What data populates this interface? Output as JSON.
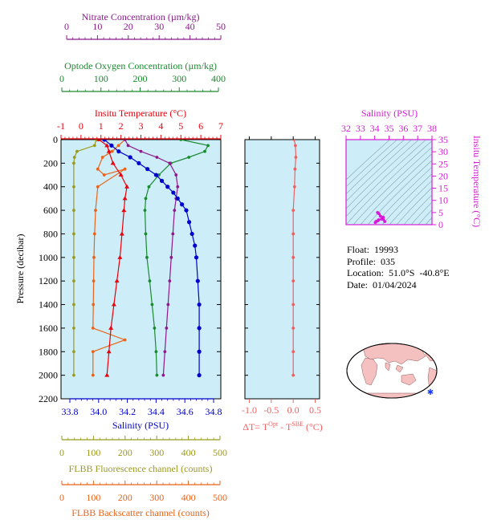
{
  "axes": {
    "nitrate": {
      "label": "Nitrate Concentration (µm/kg)",
      "ticks": [
        "0",
        "10",
        "20",
        "30",
        "40",
        "50"
      ],
      "range": [
        0,
        50
      ],
      "color": "#8b1a8b"
    },
    "oxygen": {
      "label": "Optode Oxygen Concentration (µm/kg)",
      "ticks": [
        "0",
        "100",
        "200",
        "300",
        "400"
      ],
      "range": [
        0,
        400
      ],
      "color": "#1a8a2e"
    },
    "temperature": {
      "label": "Insitu Temperature (°C)",
      "ticks": [
        "-1",
        "0",
        "1",
        "2",
        "3",
        "4",
        "5",
        "6",
        "7"
      ],
      "range": [
        -1,
        7
      ],
      "color": "#e8000b"
    },
    "salinity": {
      "label": "Salinity (PSU)",
      "ticks": [
        "33.8",
        "34.0",
        "34.2",
        "34.4",
        "34.6",
        "34.8"
      ],
      "range": [
        33.8,
        34.8
      ],
      "color": "#0000cc"
    },
    "pressure": {
      "label": "Pressure (decibar)",
      "ticks": [
        "0",
        "200",
        "400",
        "600",
        "800",
        "1000",
        "1200",
        "1400",
        "1600",
        "1800",
        "2000",
        "2200"
      ],
      "range": [
        0,
        2200
      ]
    },
    "fluorescence": {
      "label": "FLBB Fluorescence channel (counts)",
      "ticks": [
        "0",
        "100",
        "200",
        "300",
        "400",
        "500"
      ],
      "range": [
        0,
        500
      ],
      "color": "#9a9a1f"
    },
    "backscatter": {
      "label": "FLBB Backscatter channel (counts)",
      "ticks": [
        "0",
        "100",
        "200",
        "300",
        "400",
        "500"
      ],
      "range": [
        0,
        500
      ],
      "color": "#e8641a"
    },
    "delta_t": {
      "label_prefix": "ΔT= T",
      "sup1": "Opt",
      "mid": " - T",
      "sup2": "SBE",
      "suffix": " (°C)",
      "ticks": [
        "-1.0",
        "-0.5",
        "0.0",
        "0.5"
      ],
      "range": [
        -1.1,
        0.6
      ],
      "color": "#f06060"
    },
    "ts_salinity": {
      "label": "Salinity (PSU)",
      "ticks": [
        "32",
        "33",
        "34",
        "35",
        "36",
        "37",
        "38"
      ],
      "range": [
        32,
        38
      ],
      "color": "#d81ad8"
    },
    "ts_temperature": {
      "label": "Insitu Temperature (°C)",
      "ticks": [
        "0",
        "5",
        "10",
        "15",
        "20",
        "25",
        "30",
        "35"
      ],
      "range": [
        0,
        35
      ],
      "color": "#d81ad8"
    }
  },
  "info": {
    "float_label": "Float:",
    "float_value": "19993",
    "profile_label": "Profile:",
    "profile_value": "035",
    "location_label": "Location:",
    "location_value": "51.0°S  -40.8°E",
    "date_label": "Date:",
    "date_value": "01/04/2024"
  },
  "colors": {
    "plot_bg": "#cdeef8",
    "nitrate": "#8b1a8b",
    "oxygen": "#1a8a2e",
    "temperature": "#e8000b",
    "salinity": "#0000cc",
    "fluorescence": "#9a9a1f",
    "backscatter": "#e8641a",
    "delta_t": "#f06060",
    "ts": "#d81ad8",
    "map_land": "#f5c0c0",
    "map_ocean": "#ffffff"
  },
  "chart_data": {
    "type": "line",
    "y_axis": "Pressure (decibar)",
    "y_inverted": true,
    "series": [
      {
        "name": "Salinity",
        "units": "PSU",
        "points": [
          [
            34.04,
            0
          ],
          [
            34.09,
            50
          ],
          [
            34.14,
            100
          ],
          [
            34.22,
            150
          ],
          [
            34.28,
            200
          ],
          [
            34.34,
            250
          ],
          [
            34.4,
            300
          ],
          [
            34.44,
            350
          ],
          [
            34.48,
            400
          ],
          [
            34.52,
            450
          ],
          [
            34.55,
            500
          ],
          [
            34.58,
            550
          ],
          [
            34.61,
            600
          ],
          [
            34.63,
            700
          ],
          [
            34.65,
            800
          ],
          [
            34.67,
            900
          ],
          [
            34.68,
            1000
          ],
          [
            34.69,
            1200
          ],
          [
            34.7,
            1400
          ],
          [
            34.7,
            1600
          ],
          [
            34.7,
            1800
          ],
          [
            34.7,
            2000
          ]
        ]
      },
      {
        "name": "Temperature",
        "units": "°C",
        "points": [
          [
            0.9,
            0
          ],
          [
            1.3,
            50
          ],
          [
            1.4,
            100
          ],
          [
            1.6,
            200
          ],
          [
            2.0,
            300
          ],
          [
            2.3,
            400
          ],
          [
            2.2,
            500
          ],
          [
            2.15,
            600
          ],
          [
            2.05,
            800
          ],
          [
            1.95,
            1000
          ],
          [
            1.8,
            1200
          ],
          [
            1.65,
            1400
          ],
          [
            1.5,
            1600
          ],
          [
            1.4,
            1800
          ],
          [
            1.3,
            2000
          ]
        ]
      },
      {
        "name": "Nitrate",
        "units": "µm/kg",
        "points": [
          [
            20,
            0
          ],
          [
            21,
            50
          ],
          [
            25,
            100
          ],
          [
            30,
            150
          ],
          [
            34,
            200
          ],
          [
            36,
            300
          ],
          [
            36.5,
            400
          ],
          [
            36,
            500
          ],
          [
            35.5,
            600
          ],
          [
            35,
            800
          ],
          [
            34.5,
            1000
          ],
          [
            34,
            1200
          ],
          [
            33.5,
            1400
          ],
          [
            33,
            1600
          ],
          [
            32.5,
            1800
          ],
          [
            32,
            2000
          ]
        ]
      },
      {
        "name": "Oxygen",
        "units": "µm/kg",
        "points": [
          [
            300,
            0
          ],
          [
            368,
            50
          ],
          [
            360,
            100
          ],
          [
            320,
            150
          ],
          [
            275,
            200
          ],
          [
            245,
            300
          ],
          [
            220,
            400
          ],
          [
            212,
            500
          ],
          [
            210,
            600
          ],
          [
            212,
            800
          ],
          [
            215,
            1000
          ],
          [
            222,
            1200
          ],
          [
            228,
            1400
          ],
          [
            234,
            1600
          ],
          [
            238,
            1800
          ],
          [
            240,
            2000
          ]
        ]
      },
      {
        "name": "Fluorescence",
        "units": "counts",
        "points": [
          [
            110,
            0
          ],
          [
            105,
            50
          ],
          [
            50,
            100
          ],
          [
            42,
            150
          ],
          [
            40,
            200
          ],
          [
            40,
            400
          ],
          [
            40,
            600
          ],
          [
            40,
            800
          ],
          [
            40,
            1000
          ],
          [
            40,
            1200
          ],
          [
            40,
            1400
          ],
          [
            40,
            1600
          ],
          [
            40,
            1800
          ],
          [
            40,
            2000
          ]
        ]
      },
      {
        "name": "Backscatter",
        "units": "counts",
        "points": [
          [
            200,
            0
          ],
          [
            180,
            50
          ],
          [
            160,
            100
          ],
          [
            130,
            150
          ],
          [
            115,
            250
          ],
          [
            135,
            300
          ],
          [
            200,
            250
          ],
          [
            115,
            400
          ],
          [
            108,
            600
          ],
          [
            105,
            800
          ],
          [
            103,
            1000
          ],
          [
            102,
            1200
          ],
          [
            101,
            1400
          ],
          [
            100,
            1600
          ],
          [
            200,
            1700
          ],
          [
            100,
            1800
          ],
          [
            100,
            2000
          ]
        ]
      },
      {
        "name": "Delta T",
        "units": "°C",
        "points": [
          [
            0.02,
            0
          ],
          [
            0.05,
            50
          ],
          [
            0.06,
            150
          ],
          [
            0.04,
            250
          ],
          [
            0.03,
            400
          ],
          [
            0.0,
            600
          ],
          [
            0.0,
            800
          ],
          [
            0.0,
            1000
          ],
          [
            0.0,
            1200
          ],
          [
            0.0,
            1400
          ],
          [
            0.0,
            1600
          ],
          [
            0.0,
            1800
          ],
          [
            0.0,
            2000
          ]
        ]
      },
      {
        "name": "T-S",
        "units": "PSU / °C",
        "points": [
          [
            34.04,
            0.9
          ],
          [
            34.09,
            1.3
          ],
          [
            34.14,
            1.4
          ],
          [
            34.22,
            1.6
          ],
          [
            34.28,
            2.0
          ],
          [
            34.48,
            2.3
          ],
          [
            34.6,
            2.2
          ],
          [
            34.7,
            1.3
          ],
          [
            34.4,
            3.5
          ],
          [
            34.2,
            5.0
          ],
          [
            34.3,
            4.5
          ],
          [
            34.6,
            3.0
          ]
        ]
      }
    ]
  }
}
